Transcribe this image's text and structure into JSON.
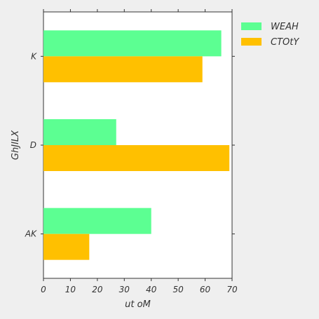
{
  "chart_data": {
    "type": "bar",
    "orientation": "horizontal",
    "categories": [
      "K",
      "D",
      "AK"
    ],
    "series": [
      {
        "name": "WEAH",
        "values": [
          66,
          27,
          40
        ],
        "color": "#5cff92"
      },
      {
        "name": "CTOtY",
        "values": [
          59,
          69,
          17
        ],
        "color": "#ffc000"
      }
    ],
    "xlabel": "ut oM",
    "ylabel": "GhJILX",
    "xlim": [
      0,
      70
    ],
    "xticks": [
      0,
      10,
      20,
      30,
      40,
      50,
      60,
      70
    ],
    "grid": false,
    "legend_position": "top-right-outside"
  }
}
